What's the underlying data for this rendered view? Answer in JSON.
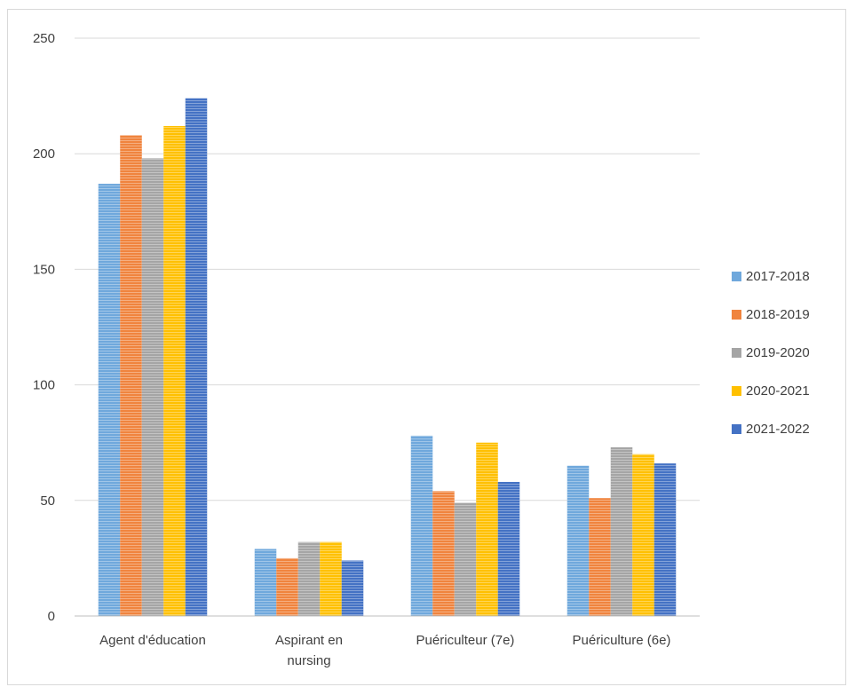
{
  "chart_data": {
    "type": "bar",
    "title": "",
    "xlabel": "",
    "ylabel": "",
    "ylim": [
      0,
      250
    ],
    "yticks": [
      0,
      50,
      100,
      150,
      200,
      250
    ],
    "grid": true,
    "legend_position": "right",
    "categories": [
      [
        "Agent d'éducation"
      ],
      [
        "Aspirant en",
        "nursing"
      ],
      [
        "Puériculteur (7e)"
      ],
      [
        "Puériculture (6e)"
      ]
    ],
    "series": [
      {
        "name": "2017-2018",
        "color": "#6fa8dc",
        "values": [
          187,
          29,
          78,
          65
        ]
      },
      {
        "name": "2018-2019",
        "color": "#f0843e",
        "values": [
          208,
          25,
          54,
          51
        ]
      },
      {
        "name": "2019-2020",
        "color": "#a5a5a5",
        "values": [
          198,
          32,
          49,
          73
        ]
      },
      {
        "name": "2020-2021",
        "color": "#ffc000",
        "values": [
          212,
          32,
          75,
          70
        ]
      },
      {
        "name": "2021-2022",
        "color": "#4472c4",
        "values": [
          224,
          24,
          58,
          66
        ]
      }
    ]
  }
}
